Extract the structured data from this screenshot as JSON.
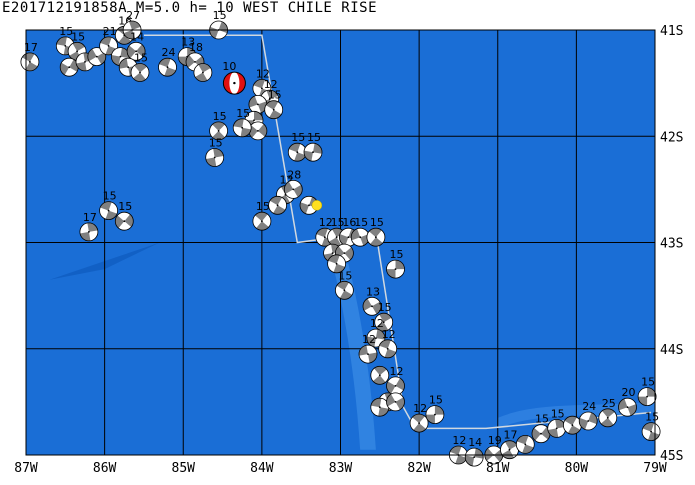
{
  "title": "E201712191858A  M=5.0  h=  10 WEST CHILE RISE",
  "map": {
    "lon_range": [
      -87,
      -79
    ],
    "lat_range": [
      -45,
      -41
    ],
    "ocean_color": "#1a6ed6",
    "ridge_color": "#3b8be6",
    "grid_color": "#000000",
    "frame_color": "#d0d8e0",
    "x_ticks": [
      {
        "lon": -87,
        "label": "87W"
      },
      {
        "lon": -86,
        "label": "86W"
      },
      {
        "lon": -85,
        "label": "85W"
      },
      {
        "lon": -84,
        "label": "84W"
      },
      {
        "lon": -83,
        "label": "83W"
      },
      {
        "lon": -82,
        "label": "82W"
      },
      {
        "lon": -81,
        "label": "81W"
      },
      {
        "lon": -80,
        "label": "80W"
      },
      {
        "lon": -79,
        "label": "79W"
      }
    ],
    "y_ticks": [
      {
        "lat": -41,
        "label": "41S"
      },
      {
        "lat": -42,
        "label": "42S"
      },
      {
        "lat": -43,
        "label": "43S"
      },
      {
        "lat": -44,
        "label": "44S"
      },
      {
        "lat": -45,
        "label": "45S"
      }
    ],
    "frame_polygon": [
      [
        -85.5,
        -41.05
      ],
      [
        -84.0,
        -41.05
      ],
      [
        -83.55,
        -43.0
      ],
      [
        -82.55,
        -42.9
      ],
      [
        -82.2,
        -44.55
      ],
      [
        -82.05,
        -44.75
      ],
      [
        -81.15,
        -44.75
      ],
      [
        -79.05,
        -44.6
      ]
    ],
    "main_event": {
      "lon": -84.35,
      "lat": -41.5,
      "depth_label": "10",
      "color": "#e01010"
    },
    "epicenter_marker": {
      "lon": -83.3,
      "lat": -42.65,
      "color": "#ffe020"
    },
    "mechanism_colors": {
      "filled": "#808080",
      "empty": "#ffffff",
      "outline": "#000000"
    },
    "events": [
      {
        "lon": -86.95,
        "lat": -41.3,
        "label": "17",
        "rot": 30
      },
      {
        "lon": -86.5,
        "lat": -41.15,
        "label": "15",
        "rot": 10
      },
      {
        "lon": -86.35,
        "lat": -41.2,
        "label": "15",
        "rot": 60
      },
      {
        "lon": -86.45,
        "lat": -41.35,
        "label": "",
        "rot": 120
      },
      {
        "lon": -86.25,
        "lat": -41.3,
        "label": "",
        "rot": 80
      },
      {
        "lon": -86.1,
        "lat": -41.25,
        "label": "",
        "rot": 150
      },
      {
        "lon": -85.95,
        "lat": -41.15,
        "label": "21",
        "rot": 20
      },
      {
        "lon": -85.75,
        "lat": -41.05,
        "label": "16",
        "rot": 40
      },
      {
        "lon": -85.65,
        "lat": -41.0,
        "label": "27",
        "rot": 70
      },
      {
        "lon": -85.8,
        "lat": -41.25,
        "label": "",
        "rot": 100
      },
      {
        "lon": -85.6,
        "lat": -41.2,
        "label": "14",
        "rot": 130
      },
      {
        "lon": -85.7,
        "lat": -41.35,
        "label": "",
        "rot": 170
      },
      {
        "lon": -85.55,
        "lat": -41.4,
        "label": "15",
        "rot": 50
      },
      {
        "lon": -85.2,
        "lat": -41.35,
        "label": "24",
        "rot": 20
      },
      {
        "lon": -84.95,
        "lat": -41.25,
        "label": "13",
        "rot": 90
      },
      {
        "lon": -84.85,
        "lat": -41.3,
        "label": "18",
        "rot": 140
      },
      {
        "lon": -84.75,
        "lat": -41.4,
        "label": "",
        "rot": 60
      },
      {
        "lon": -84.55,
        "lat": -41.0,
        "label": "15",
        "rot": 110
      },
      {
        "lon": -84.0,
        "lat": -41.55,
        "label": "12",
        "rot": 20
      },
      {
        "lon": -83.9,
        "lat": -41.65,
        "label": "12",
        "rot": 70
      },
      {
        "lon": -84.05,
        "lat": -41.7,
        "label": "",
        "rot": 160
      },
      {
        "lon": -83.85,
        "lat": -41.75,
        "label": "15",
        "rot": 30
      },
      {
        "lon": -84.1,
        "lat": -41.85,
        "label": "",
        "rot": 90
      },
      {
        "lon": -84.05,
        "lat": -41.95,
        "label": "",
        "rot": 130
      },
      {
        "lon": -84.25,
        "lat": -41.92,
        "label": "15",
        "rot": 10
      },
      {
        "lon": -84.55,
        "lat": -41.95,
        "label": "15",
        "rot": 45
      },
      {
        "lon": -84.6,
        "lat": -42.2,
        "label": "15",
        "rot": 80
      },
      {
        "lon": -83.55,
        "lat": -42.15,
        "label": "15",
        "rot": 20
      },
      {
        "lon": -83.35,
        "lat": -42.15,
        "label": "15",
        "rot": 100
      },
      {
        "lon": -83.7,
        "lat": -42.55,
        "label": "12",
        "rot": 60
      },
      {
        "lon": -83.6,
        "lat": -42.5,
        "label": "28",
        "rot": 150
      },
      {
        "lon": -83.8,
        "lat": -42.65,
        "label": "",
        "rot": 30
      },
      {
        "lon": -83.4,
        "lat": -42.65,
        "label": "",
        "rot": 110
      },
      {
        "lon": -84.0,
        "lat": -42.8,
        "label": "15",
        "rot": 40
      },
      {
        "lon": -86.2,
        "lat": -42.9,
        "label": "17",
        "rot": 80
      },
      {
        "lon": -85.95,
        "lat": -42.7,
        "label": "15",
        "rot": 20
      },
      {
        "lon": -85.75,
        "lat": -42.8,
        "label": "15",
        "rot": 130
      },
      {
        "lon": -83.2,
        "lat": -42.95,
        "label": "12",
        "rot": 20
      },
      {
        "lon": -83.05,
        "lat": -42.95,
        "label": "15",
        "rot": 60
      },
      {
        "lon": -82.9,
        "lat": -42.95,
        "label": "16",
        "rot": 110
      },
      {
        "lon": -82.75,
        "lat": -42.95,
        "label": "15",
        "rot": 160
      },
      {
        "lon": -82.55,
        "lat": -42.95,
        "label": "15",
        "rot": 40
      },
      {
        "lon": -83.1,
        "lat": -43.1,
        "label": "",
        "rot": 80
      },
      {
        "lon": -82.95,
        "lat": -43.1,
        "label": "",
        "rot": 140
      },
      {
        "lon": -83.05,
        "lat": -43.2,
        "label": "",
        "rot": 20
      },
      {
        "lon": -82.3,
        "lat": -43.25,
        "label": "15",
        "rot": 90
      },
      {
        "lon": -82.95,
        "lat": -43.45,
        "label": "15",
        "rot": 30
      },
      {
        "lon": -82.6,
        "lat": -43.6,
        "label": "13",
        "rot": 150
      },
      {
        "lon": -82.45,
        "lat": -43.75,
        "label": "15",
        "rot": 60
      },
      {
        "lon": -82.55,
        "lat": -43.9,
        "label": "12",
        "rot": 100
      },
      {
        "lon": -82.4,
        "lat": -44.0,
        "label": "12",
        "rot": 20
      },
      {
        "lon": -82.65,
        "lat": -44.05,
        "label": "12",
        "rot": 170
      },
      {
        "lon": -82.5,
        "lat": -44.25,
        "label": "",
        "rot": 50
      },
      {
        "lon": -82.3,
        "lat": -44.35,
        "label": "12",
        "rot": 120
      },
      {
        "lon": -82.4,
        "lat": -44.5,
        "label": "",
        "rot": 70
      },
      {
        "lon": -82.5,
        "lat": -44.55,
        "label": "",
        "rot": 10
      },
      {
        "lon": -82.3,
        "lat": -44.5,
        "label": "",
        "rot": 150
      },
      {
        "lon": -82.0,
        "lat": -44.7,
        "label": "12",
        "rot": 40
      },
      {
        "lon": -81.8,
        "lat": -44.62,
        "label": "15",
        "rot": 90
      },
      {
        "lon": -81.5,
        "lat": -45.0,
        "label": "12",
        "rot": 20
      },
      {
        "lon": -81.3,
        "lat": -45.02,
        "label": "14",
        "rot": 100
      },
      {
        "lon": -81.05,
        "lat": -45.0,
        "label": "19",
        "rot": 140
      },
      {
        "lon": -80.85,
        "lat": -44.95,
        "label": "17",
        "rot": 60
      },
      {
        "lon": -80.65,
        "lat": -44.9,
        "label": "",
        "rot": 20
      },
      {
        "lon": -80.45,
        "lat": -44.8,
        "label": "15",
        "rot": 130
      },
      {
        "lon": -80.25,
        "lat": -44.75,
        "label": "15",
        "rot": 80
      },
      {
        "lon": -80.05,
        "lat": -44.72,
        "label": "",
        "rot": 30
      },
      {
        "lon": -79.85,
        "lat": -44.68,
        "label": "24",
        "rot": 110
      },
      {
        "lon": -79.6,
        "lat": -44.65,
        "label": "25",
        "rot": 50
      },
      {
        "lon": -79.35,
        "lat": -44.55,
        "label": "20",
        "rot": 160
      },
      {
        "lon": -79.1,
        "lat": -44.45,
        "label": "15",
        "rot": 90
      },
      {
        "lon": -79.05,
        "lat": -44.78,
        "label": "15",
        "rot": 20
      }
    ]
  }
}
